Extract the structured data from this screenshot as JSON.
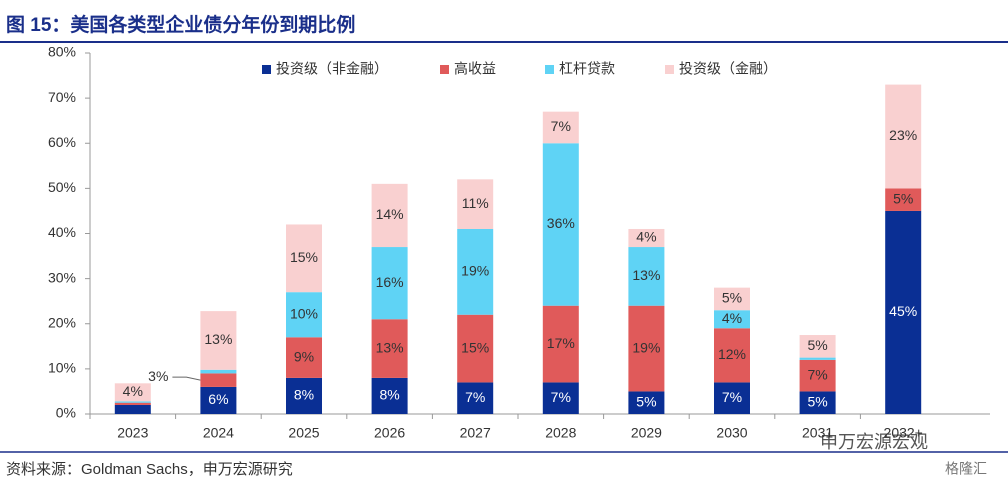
{
  "chart_data": {
    "type": "stacked_bar",
    "title": "图 15：美国各类型企业债分年份到期比例",
    "source": "资料来源：Goldman Sachs，申万宏源研究",
    "watermark": [
      "申万宏源宏观",
      "格隆汇"
    ],
    "categories": [
      "2023",
      "2024",
      "2025",
      "2026",
      "2027",
      "2028",
      "2029",
      "2030",
      "2031",
      "2032+"
    ],
    "series": [
      {
        "name": "投资级（非金融）",
        "color": "#0a2f94",
        "label_color": "#ffffff",
        "values": [
          2,
          6,
          8,
          8,
          7,
          7,
          5,
          7,
          5,
          45
        ],
        "value_labels": [
          null,
          "6%",
          "8%",
          "8%",
          "7%",
          "7%",
          "5%",
          "7%",
          "5%",
          "45%"
        ]
      },
      {
        "name": "高收益",
        "color": "#e05a5a",
        "label_color": "#333333",
        "values": [
          0.5,
          3,
          9,
          13,
          15,
          17,
          19,
          12,
          7,
          5
        ],
        "value_labels": [
          null,
          "3%",
          "9%",
          "13%",
          "15%",
          "17%",
          "19%",
          "12%",
          "7%",
          "5%"
        ]
      },
      {
        "name": "杠杆贷款",
        "color": "#5fd3f5",
        "label_color": "#333333",
        "values": [
          0.3,
          0.8,
          10,
          16,
          19,
          36,
          13,
          4,
          0.5,
          0
        ],
        "value_labels": [
          null,
          null,
          "10%",
          "16%",
          "19%",
          "36%",
          "13%",
          "4%",
          null,
          null
        ]
      },
      {
        "name": "投资级（金融）",
        "color": "#f9d0d0",
        "label_color": "#333333",
        "values": [
          4,
          13,
          15,
          14,
          11,
          7,
          4,
          5,
          5,
          23
        ],
        "value_labels": [
          "4%",
          "13%",
          "15%",
          "14%",
          "11%",
          "7%",
          "4%",
          "5%",
          "5%",
          "23%"
        ]
      }
    ],
    "ylim": [
      0,
      80
    ],
    "yticks": [
      {
        "value": 0,
        "label": "0%"
      },
      {
        "value": 10,
        "label": "10%"
      },
      {
        "value": 20,
        "label": "20%"
      },
      {
        "value": 30,
        "label": "30%"
      },
      {
        "value": 40,
        "label": "40%"
      },
      {
        "value": 50,
        "label": "50%"
      },
      {
        "value": 60,
        "label": "60%"
      },
      {
        "value": 70,
        "label": "70%"
      },
      {
        "value": 80,
        "label": "80%"
      }
    ],
    "grid": false
  }
}
